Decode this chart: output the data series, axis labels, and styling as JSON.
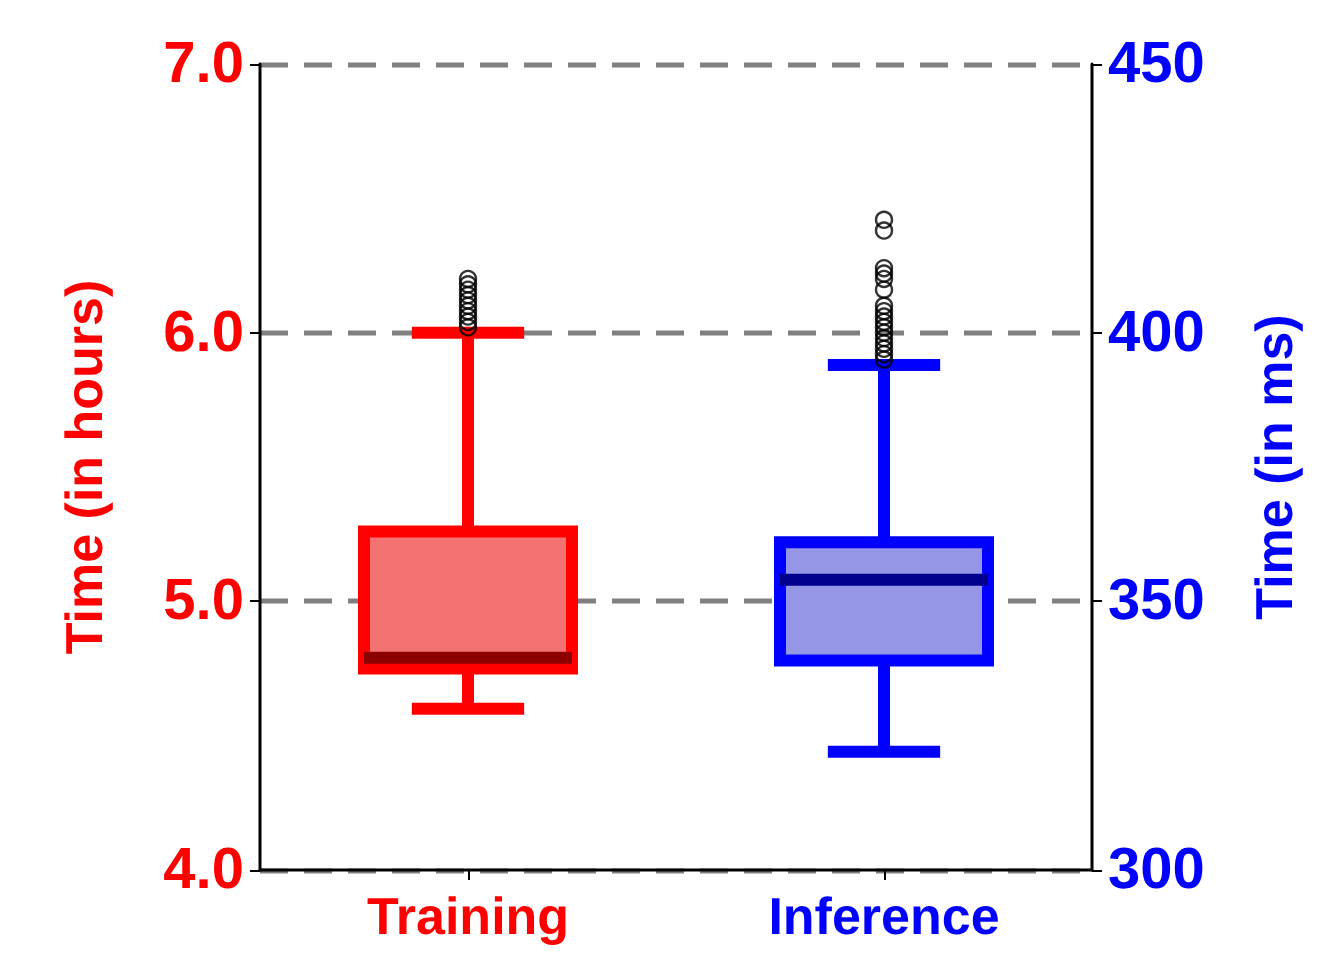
{
  "chart_data": {
    "type": "box",
    "categories": [
      "Training",
      "Inference"
    ],
    "ylabel": "Time (in hours)",
    "y2label": "Time (in ms)",
    "ylim": [
      4.0,
      7.0
    ],
    "yticks": [
      {
        "value": 4,
        "label": "4.0"
      },
      {
        "value": 5,
        "label": "5.0"
      },
      {
        "value": 6,
        "label": "6.0"
      },
      {
        "value": 7,
        "label": "7.0"
      }
    ],
    "y2lim": [
      300,
      450
    ],
    "y2ticks": [
      300,
      350,
      400,
      450
    ],
    "grid": "y",
    "series": [
      {
        "color": "#ff0000",
        "boxes": [
          {
            "low": 4.6,
            "q1": 4.75,
            "median": 4.79,
            "q3": 5.26,
            "high": 6.0,
            "outliers": [
              6.02,
              6.04,
              6.06,
              6.08,
              6.1,
              6.12,
              6.14,
              6.16,
              6.18,
              6.2
            ]
          },
          null
        ]
      },
      {
        "color": "#0000ff",
        "axis": "y2",
        "boxes": [
          null,
          {
            "low": 322,
            "q1": 339,
            "median": 354,
            "q3": 361,
            "high": 394,
            "outliers": [
              395,
              396,
              397,
              398,
              399,
              400,
              401,
              402,
              403,
              404,
              405,
              408,
              410,
              411,
              412,
              419,
              421
            ]
          }
        ]
      }
    ]
  }
}
